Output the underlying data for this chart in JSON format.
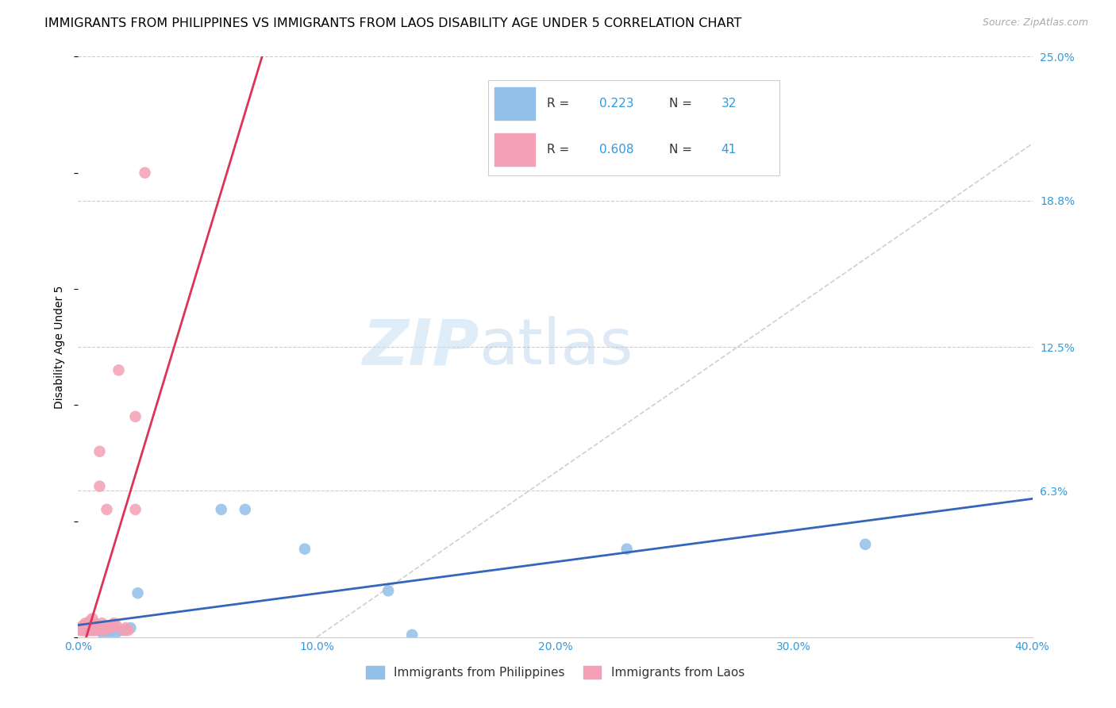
{
  "title": "IMMIGRANTS FROM PHILIPPINES VS IMMIGRANTS FROM LAOS DISABILITY AGE UNDER 5 CORRELATION CHART",
  "source": "Source: ZipAtlas.com",
  "ylabel": "Disability Age Under 5",
  "xlim": [
    0.0,
    0.4
  ],
  "ylim": [
    0.0,
    0.25
  ],
  "xticks": [
    0.0,
    0.1,
    0.2,
    0.3,
    0.4
  ],
  "xtick_labels": [
    "0.0%",
    "10.0%",
    "20.0%",
    "30.0%",
    "40.0%"
  ],
  "ytick_vals": [
    0.0,
    0.063,
    0.125,
    0.188,
    0.25
  ],
  "ytick_labels": [
    "",
    "6.3%",
    "12.5%",
    "18.8%",
    "25.0%"
  ],
  "philippines_color": "#92c0e8",
  "laos_color": "#f4a0b5",
  "philippines_line_color": "#3366bb",
  "laos_line_color": "#dd3355",
  "philippines_R": 0.223,
  "philippines_N": 32,
  "laos_R": 0.608,
  "laos_N": 41,
  "watermark_zip": "ZIP",
  "watermark_atlas": "atlas",
  "background_color": "#ffffff",
  "grid_color": "#cccccc",
  "title_fontsize": 11.5,
  "axis_label_fontsize": 10,
  "tick_fontsize": 10,
  "legend_fontsize": 11,
  "philippines_x": [
    0.001,
    0.002,
    0.002,
    0.003,
    0.003,
    0.004,
    0.005,
    0.005,
    0.006,
    0.006,
    0.007,
    0.008,
    0.009,
    0.01,
    0.01,
    0.011,
    0.012,
    0.013,
    0.014,
    0.015,
    0.016,
    0.018,
    0.02,
    0.022,
    0.025,
    0.06,
    0.07,
    0.095,
    0.13,
    0.14,
    0.23,
    0.33
  ],
  "philippines_y": [
    0.003,
    0.003,
    0.004,
    0.003,
    0.004,
    0.003,
    0.003,
    0.004,
    0.003,
    0.005,
    0.003,
    0.004,
    0.003,
    0.002,
    0.004,
    0.003,
    0.003,
    0.002,
    0.003,
    0.004,
    0.002,
    0.003,
    0.003,
    0.004,
    0.019,
    0.055,
    0.055,
    0.038,
    0.02,
    0.001,
    0.038,
    0.04
  ],
  "laos_x": [
    0.001,
    0.001,
    0.002,
    0.002,
    0.002,
    0.003,
    0.003,
    0.003,
    0.003,
    0.004,
    0.004,
    0.004,
    0.005,
    0.005,
    0.005,
    0.005,
    0.006,
    0.006,
    0.006,
    0.007,
    0.007,
    0.007,
    0.008,
    0.008,
    0.009,
    0.009,
    0.01,
    0.01,
    0.011,
    0.012,
    0.013,
    0.014,
    0.015,
    0.016,
    0.017,
    0.019,
    0.02,
    0.021,
    0.024,
    0.024,
    0.028
  ],
  "laos_y": [
    0.003,
    0.004,
    0.003,
    0.004,
    0.005,
    0.003,
    0.004,
    0.005,
    0.006,
    0.003,
    0.004,
    0.005,
    0.003,
    0.004,
    0.005,
    0.007,
    0.003,
    0.005,
    0.008,
    0.003,
    0.004,
    0.006,
    0.003,
    0.005,
    0.065,
    0.08,
    0.004,
    0.006,
    0.003,
    0.055,
    0.005,
    0.004,
    0.006,
    0.005,
    0.115,
    0.003,
    0.004,
    0.003,
    0.055,
    0.095,
    0.2
  ]
}
